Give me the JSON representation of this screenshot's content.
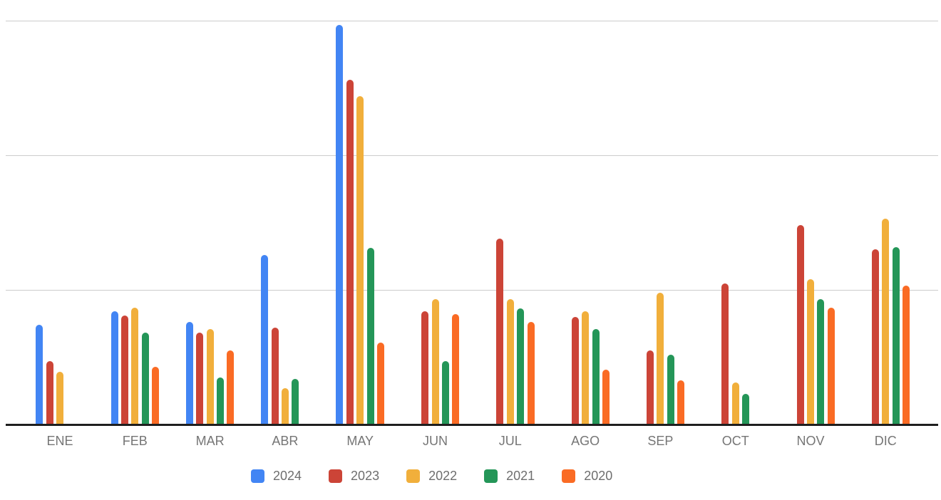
{
  "chart_data": {
    "type": "bar",
    "title": "",
    "xlabel": "",
    "ylabel": "",
    "categories": [
      "ENE",
      "FEB",
      "MAR",
      "ABR",
      "MAY",
      "JUN",
      "JUL",
      "AGO",
      "SEP",
      "OCT",
      "NOV",
      "DIC"
    ],
    "series": [
      {
        "name": "2024",
        "color": "#4285F4",
        "values": [
          74,
          84,
          76,
          126,
          297,
          0,
          0,
          0,
          0,
          0,
          0,
          0
        ]
      },
      {
        "name": "2023",
        "color": "#CC4437",
        "values": [
          47,
          81,
          68,
          72,
          256,
          84,
          138,
          80,
          55,
          105,
          148,
          130
        ]
      },
      {
        "name": "2022",
        "color": "#F1AF3B",
        "values": [
          39,
          87,
          71,
          27,
          244,
          93,
          93,
          84,
          98,
          31,
          108,
          153
        ]
      },
      {
        "name": "2021",
        "color": "#249658",
        "values": [
          0,
          68,
          35,
          34,
          131,
          47,
          86,
          71,
          52,
          23,
          93,
          132
        ]
      },
      {
        "name": "2020",
        "color": "#FA6B24",
        "values": [
          0,
          43,
          55,
          0,
          61,
          82,
          76,
          41,
          33,
          0,
          87,
          103
        ]
      }
    ],
    "ylim": [
      0,
      300
    ],
    "y_gridlines": [
      100,
      200,
      300
    ],
    "y_tick_labels_visible": false,
    "grid": true,
    "legend_position": "bottom",
    "axis_color": "#1f1f1f",
    "gridline_color": "#cccccc",
    "label_color": "#757575",
    "background_color": "#ffffff"
  }
}
